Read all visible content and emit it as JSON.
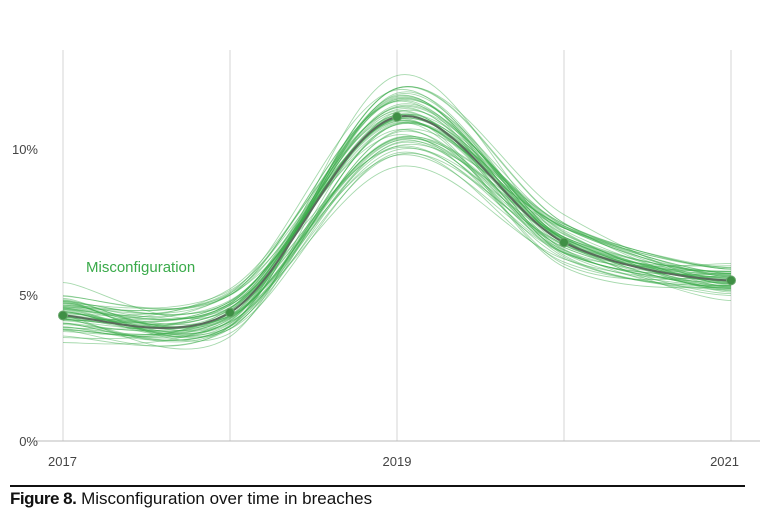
{
  "chart_data": {
    "type": "line",
    "title": "Misconfiguration over time in breaches",
    "figure_label": "Figure 8.",
    "xlabel": "",
    "ylabel": "",
    "x": [
      2017,
      2018,
      2019,
      2020,
      2021
    ],
    "x_tick_labels": [
      "2017",
      "2019",
      "2021"
    ],
    "x_tick_values": [
      2017,
      2019,
      2021
    ],
    "y_tick_labels": [
      "0%",
      "5%",
      "10%"
    ],
    "y_tick_values": [
      0,
      5,
      10
    ],
    "ylim": [
      0,
      13.5
    ],
    "grid": "vertical",
    "series": [
      {
        "name": "Misconfiguration",
        "values": [
          4.3,
          4.4,
          11.1,
          6.8,
          5.5
        ],
        "color": "#3aaa4a"
      }
    ],
    "uncertainty": {
      "sample_draws": 60,
      "spread_percent": [
        0.45,
        0.4,
        0.65,
        0.45,
        0.3
      ],
      "color": "#3aaa4a"
    },
    "mean_line_color": "#5a6b5c",
    "point_color": "#3f8f45"
  }
}
